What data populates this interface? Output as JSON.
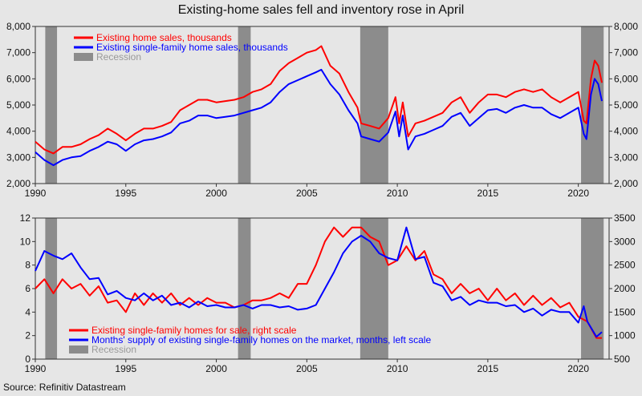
{
  "title": "Existing-home sales fell and inventory rose in April",
  "source": "Source: Refinitiv Datastream",
  "colors": {
    "red": "#ff0000",
    "blue": "#0000ff",
    "recession": "#8c8c8c",
    "background": "#e6e6e6"
  },
  "recessions": [
    [
      1990.55,
      1991.2
    ],
    [
      2001.2,
      2001.9
    ],
    [
      2007.95,
      2009.5
    ],
    [
      2020.15,
      2021.4
    ]
  ],
  "chart_data": [
    {
      "type": "line",
      "title": "Existing-home sales fell and inventory rose in April",
      "xlim": [
        1990,
        2021.7
      ],
      "x_ticks": [
        1990,
        1995,
        2000,
        2005,
        2010,
        2015,
        2020
      ],
      "ylim": [
        2000,
        8000
      ],
      "y_ticks": [
        "2,000",
        "3,000",
        "4,000",
        "5,000",
        "6,000",
        "7,000",
        "8,000"
      ],
      "right_y_ticks": [
        "2,000",
        "3,000",
        "4,000",
        "5,000",
        "6,000",
        "7,000",
        "8,000"
      ],
      "legend": [
        "Existing home sales, thousands",
        "Existing single-family home sales, thousands",
        "Recession"
      ],
      "series": [
        {
          "name": "Existing home sales, thousands",
          "axis": "left",
          "color": "#ff0000",
          "x": [
            1990.0,
            1990.5,
            1991.0,
            1991.5,
            1992.0,
            1992.5,
            1993.0,
            1993.5,
            1994.0,
            1994.5,
            1995.0,
            1995.5,
            1996.0,
            1996.5,
            1997.0,
            1997.5,
            1998.0,
            1998.5,
            1999.0,
            1999.5,
            2000.0,
            2000.5,
            2001.0,
            2001.5,
            2002.0,
            2002.5,
            2003.0,
            2003.5,
            2004.0,
            2004.5,
            2005.0,
            2005.5,
            2005.8,
            2006.3,
            2006.8,
            2007.3,
            2007.8,
            2008.0,
            2008.5,
            2009.0,
            2009.5,
            2009.9,
            2010.1,
            2010.3,
            2010.6,
            2011.0,
            2011.5,
            2012.0,
            2012.5,
            2013.0,
            2013.5,
            2014.0,
            2014.5,
            2015.0,
            2015.5,
            2016.0,
            2016.5,
            2017.0,
            2017.5,
            2018.0,
            2018.5,
            2019.0,
            2019.5,
            2020.0,
            2020.3,
            2020.45,
            2020.7,
            2020.9,
            2021.1,
            2021.3
          ],
          "values": [
            3600,
            3300,
            3150,
            3400,
            3400,
            3500,
            3700,
            3850,
            4100,
            3900,
            3650,
            3900,
            4100,
            4100,
            4200,
            4350,
            4800,
            5000,
            5200,
            5200,
            5100,
            5150,
            5200,
            5300,
            5500,
            5600,
            5800,
            6300,
            6600,
            6800,
            7000,
            7100,
            7250,
            6500,
            6200,
            5500,
            4900,
            4300,
            4200,
            4100,
            4500,
            5300,
            4300,
            5100,
            3800,
            4300,
            4400,
            4550,
            4700,
            5100,
            5300,
            4700,
            5100,
            5400,
            5400,
            5300,
            5500,
            5600,
            5500,
            5600,
            5300,
            5100,
            5300,
            5500,
            4400,
            4300,
            6000,
            6700,
            6500,
            5850
          ]
        },
        {
          "name": "Existing single-family home sales, thousands",
          "axis": "left",
          "color": "#0000ff",
          "x": [
            1990.0,
            1990.5,
            1991.0,
            1991.5,
            1992.0,
            1992.5,
            1993.0,
            1993.5,
            1994.0,
            1994.5,
            1995.0,
            1995.5,
            1996.0,
            1996.5,
            1997.0,
            1997.5,
            1998.0,
            1998.5,
            1999.0,
            1999.5,
            2000.0,
            2000.5,
            2001.0,
            2001.5,
            2002.0,
            2002.5,
            2003.0,
            2003.5,
            2004.0,
            2004.5,
            2005.0,
            2005.5,
            2005.8,
            2006.3,
            2006.8,
            2007.3,
            2007.8,
            2008.0,
            2008.5,
            2009.0,
            2009.5,
            2009.9,
            2010.1,
            2010.3,
            2010.6,
            2011.0,
            2011.5,
            2012.0,
            2012.5,
            2013.0,
            2013.5,
            2014.0,
            2014.5,
            2015.0,
            2015.5,
            2016.0,
            2016.5,
            2017.0,
            2017.5,
            2018.0,
            2018.5,
            2019.0,
            2019.5,
            2020.0,
            2020.3,
            2020.45,
            2020.7,
            2020.9,
            2021.1,
            2021.3
          ],
          "values": [
            3200,
            2900,
            2700,
            2900,
            3000,
            3050,
            3250,
            3400,
            3600,
            3500,
            3250,
            3500,
            3650,
            3700,
            3800,
            3950,
            4300,
            4400,
            4600,
            4600,
            4500,
            4550,
            4600,
            4700,
            4800,
            4900,
            5100,
            5500,
            5800,
            5950,
            6100,
            6250,
            6350,
            5800,
            5400,
            4800,
            4300,
            3800,
            3700,
            3600,
            3950,
            4750,
            3800,
            4600,
            3300,
            3800,
            3900,
            4050,
            4200,
            4550,
            4700,
            4200,
            4500,
            4800,
            4850,
            4700,
            4900,
            5000,
            4900,
            4900,
            4650,
            4500,
            4700,
            4900,
            3900,
            3700,
            5400,
            6000,
            5800,
            5150
          ]
        }
      ]
    },
    {
      "type": "line",
      "xlim": [
        1990,
        2021.7
      ],
      "x_ticks": [
        1990,
        1995,
        2000,
        2005,
        2010,
        2015,
        2020
      ],
      "ylim": [
        0,
        12
      ],
      "y_ticks": [
        "0",
        "2",
        "4",
        "6",
        "8",
        "10",
        "12"
      ],
      "right_ylim": [
        500,
        3500
      ],
      "right_y_ticks": [
        "500",
        "1000",
        "1500",
        "2000",
        "2500",
        "3000",
        "3500"
      ],
      "legend": [
        "Existing single-family homes for sale, right scale",
        "Months' supply of existing single-family homes on the market, months, left scale",
        "Recession"
      ],
      "series": [
        {
          "name": "Existing single-family homes for sale, right scale",
          "axis": "right",
          "color": "#ff0000",
          "x": [
            1990.0,
            1990.5,
            1991.0,
            1991.5,
            1992.0,
            1992.5,
            1993.0,
            1993.5,
            1994.0,
            1994.5,
            1995.0,
            1995.5,
            1996.0,
            1996.5,
            1997.0,
            1997.5,
            1998.0,
            1998.5,
            1999.0,
            1999.5,
            2000.0,
            2000.5,
            2001.0,
            2001.5,
            2002.0,
            2002.5,
            2003.0,
            2003.5,
            2004.0,
            2004.5,
            2005.0,
            2005.5,
            2006.0,
            2006.5,
            2007.0,
            2007.5,
            2008.0,
            2008.5,
            2009.0,
            2009.5,
            2010.0,
            2010.5,
            2011.0,
            2011.5,
            2012.0,
            2012.5,
            2013.0,
            2013.5,
            2014.0,
            2014.5,
            2015.0,
            2015.5,
            2016.0,
            2016.5,
            2017.0,
            2017.5,
            2018.0,
            2018.5,
            2019.0,
            2019.5,
            2020.0,
            2020.5,
            2021.0,
            2021.3
          ],
          "values": [
            2000,
            2200,
            1900,
            2200,
            2000,
            2100,
            1850,
            2050,
            1700,
            1750,
            1500,
            1900,
            1650,
            1900,
            1700,
            1900,
            1650,
            1800,
            1650,
            1800,
            1700,
            1700,
            1600,
            1650,
            1750,
            1750,
            1800,
            1900,
            1800,
            2100,
            2100,
            2500,
            3000,
            3300,
            3100,
            3300,
            3300,
            3100,
            3000,
            2500,
            2600,
            2900,
            2600,
            2800,
            2300,
            2200,
            1900,
            2100,
            1900,
            2000,
            1750,
            2000,
            1750,
            1900,
            1650,
            1850,
            1650,
            1800,
            1600,
            1700,
            1400,
            1300,
            950,
            950
          ]
        },
        {
          "name": "Months' supply of existing single-family homes on the market, months, left scale",
          "axis": "left",
          "color": "#0000ff",
          "x": [
            1990.0,
            1990.5,
            1991.0,
            1991.5,
            1992.0,
            1992.5,
            1993.0,
            1993.5,
            1994.0,
            1994.5,
            1995.0,
            1995.5,
            1996.0,
            1996.5,
            1997.0,
            1997.5,
            1998.0,
            1998.5,
            1999.0,
            1999.5,
            2000.0,
            2000.5,
            2001.0,
            2001.5,
            2002.0,
            2002.5,
            2003.0,
            2003.5,
            2004.0,
            2004.5,
            2005.0,
            2005.5,
            2006.0,
            2006.5,
            2007.0,
            2007.5,
            2008.0,
            2008.5,
            2009.0,
            2009.5,
            2010.0,
            2010.5,
            2011.0,
            2011.5,
            2012.0,
            2012.5,
            2013.0,
            2013.5,
            2014.0,
            2014.5,
            2015.0,
            2015.5,
            2016.0,
            2016.5,
            2017.0,
            2017.5,
            2018.0,
            2018.5,
            2019.0,
            2019.5,
            2020.0,
            2020.3,
            2020.5,
            2021.0,
            2021.3
          ],
          "values": [
            7.5,
            9.2,
            8.8,
            8.5,
            9.0,
            7.8,
            6.8,
            6.9,
            5.5,
            5.8,
            5.2,
            5.0,
            5.6,
            5.0,
            5.4,
            4.6,
            4.8,
            4.4,
            4.9,
            4.5,
            4.6,
            4.4,
            4.4,
            4.6,
            4.3,
            4.6,
            4.6,
            4.4,
            4.5,
            4.2,
            4.3,
            4.6,
            6.0,
            7.4,
            9.0,
            10.0,
            10.5,
            10.0,
            9.0,
            8.6,
            8.4,
            11.2,
            8.5,
            8.7,
            6.5,
            6.2,
            5.0,
            5.3,
            4.6,
            5.0,
            4.8,
            4.8,
            4.5,
            4.6,
            4.0,
            4.3,
            3.7,
            4.2,
            4.0,
            4.0,
            3.1,
            4.5,
            3.2,
            1.9,
            2.3
          ]
        }
      ]
    }
  ]
}
